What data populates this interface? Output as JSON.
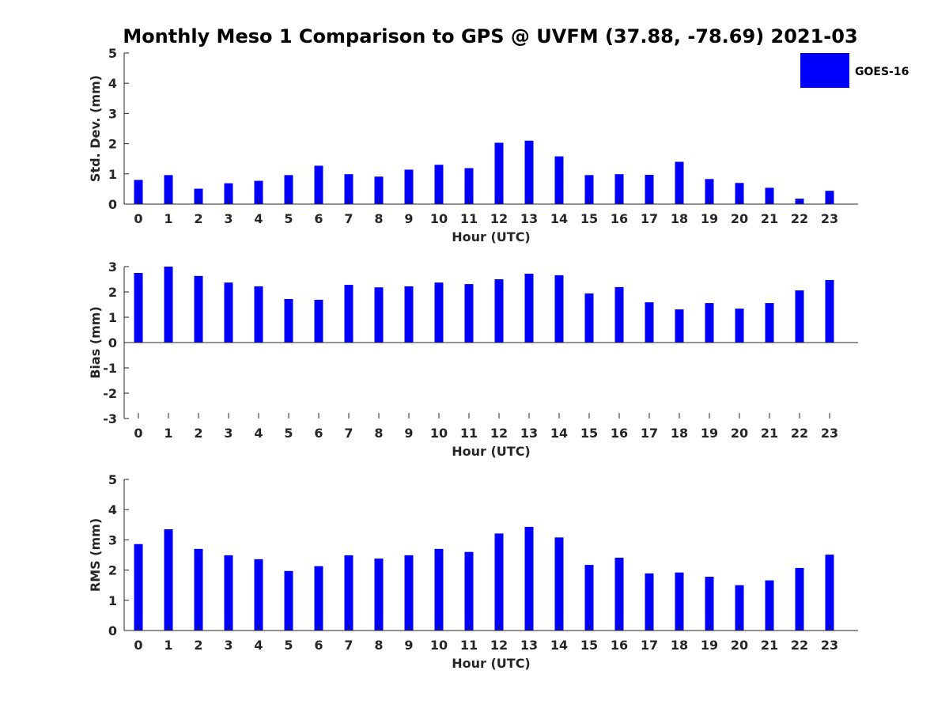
{
  "chart_data": {
    "title": "Monthly Meso 1 Comparison to GPS @ UVFM (37.88, -78.69) 2021-03",
    "legend": {
      "label": "GOES-16",
      "color": "#0000ff",
      "position": "top-right"
    },
    "panels": [
      {
        "type": "bar",
        "ylabel": "Std. Dev. (mm)",
        "xlabel": "Hour (UTC)",
        "ylim": [
          0,
          5
        ],
        "yticks": [
          "0",
          "1",
          "2",
          "3",
          "4",
          "5"
        ],
        "categories": [
          "0",
          "1",
          "2",
          "3",
          "4",
          "5",
          "6",
          "7",
          "8",
          "9",
          "10",
          "11",
          "12",
          "13",
          "14",
          "15",
          "16",
          "17",
          "18",
          "19",
          "20",
          "21",
          "22",
          "23"
        ],
        "values": [
          0.8,
          0.96,
          0.51,
          0.69,
          0.77,
          0.96,
          1.27,
          0.99,
          0.91,
          1.14,
          1.3,
          1.19,
          2.03,
          2.1,
          1.58,
          0.96,
          0.99,
          0.97,
          1.4,
          0.83,
          0.7,
          0.54,
          0.18,
          0.44
        ]
      },
      {
        "type": "bar",
        "ylabel": "Bias (mm)",
        "xlabel": "Hour (UTC)",
        "ylim": [
          -3,
          3
        ],
        "yticks": [
          "-3",
          "-2",
          "-1",
          "0",
          "1",
          "2",
          "3"
        ],
        "categories": [
          "0",
          "1",
          "2",
          "3",
          "4",
          "5",
          "6",
          "7",
          "8",
          "9",
          "10",
          "11",
          "12",
          "13",
          "14",
          "15",
          "16",
          "17",
          "18",
          "19",
          "20",
          "21",
          "22",
          "23"
        ],
        "values": [
          2.75,
          3.0,
          2.63,
          2.37,
          2.22,
          1.72,
          1.69,
          2.28,
          2.18,
          2.22,
          2.37,
          2.31,
          2.5,
          2.72,
          2.66,
          1.94,
          2.19,
          1.59,
          1.31,
          1.56,
          1.34,
          1.56,
          2.06,
          2.47
        ]
      },
      {
        "type": "bar",
        "ylabel": "RMS (mm)",
        "xlabel": "Hour (UTC)",
        "ylim": [
          0,
          5
        ],
        "yticks": [
          "0",
          "1",
          "2",
          "3",
          "4",
          "5"
        ],
        "categories": [
          "0",
          "1",
          "2",
          "3",
          "4",
          "5",
          "6",
          "7",
          "8",
          "9",
          "10",
          "11",
          "12",
          "13",
          "14",
          "15",
          "16",
          "17",
          "18",
          "19",
          "20",
          "21",
          "22",
          "23"
        ],
        "values": [
          2.86,
          3.35,
          2.7,
          2.49,
          2.36,
          1.97,
          2.13,
          2.49,
          2.38,
          2.49,
          2.7,
          2.6,
          3.21,
          3.43,
          3.08,
          2.17,
          2.41,
          1.89,
          1.92,
          1.78,
          1.5,
          1.66,
          2.07,
          2.51
        ]
      }
    ]
  }
}
